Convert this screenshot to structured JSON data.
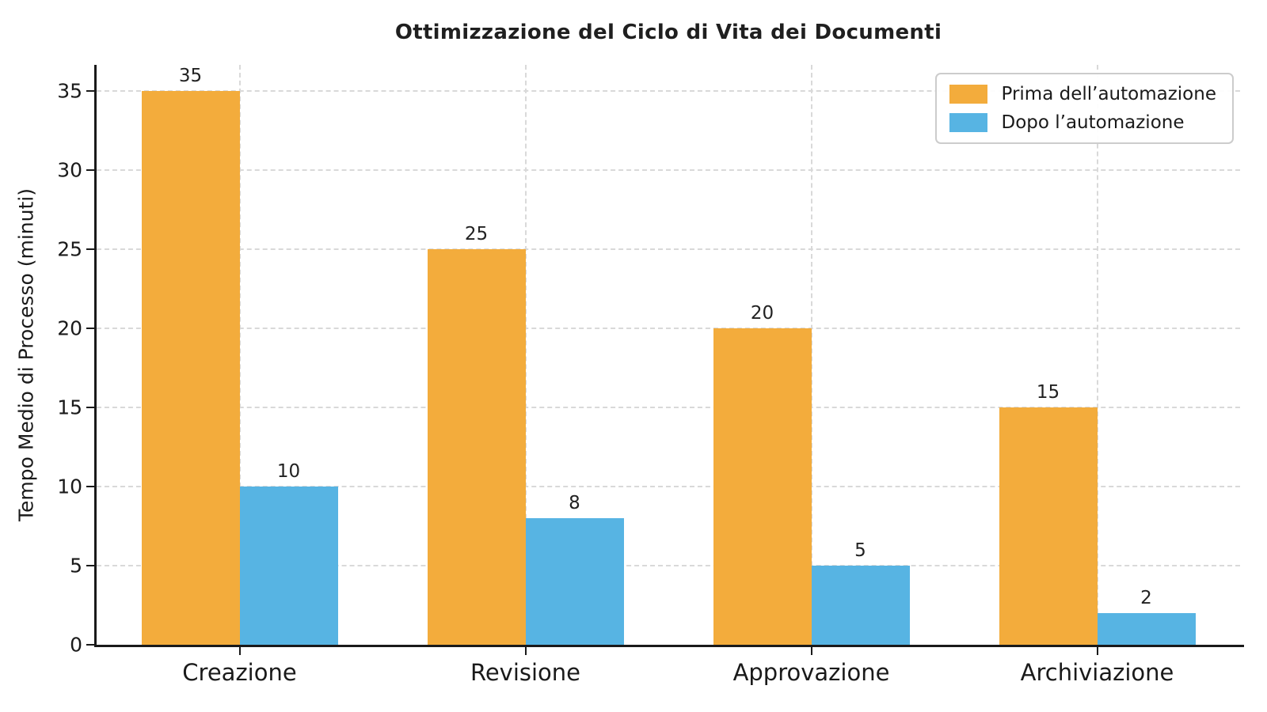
{
  "chart_data": {
    "type": "bar",
    "title": "Ottimizzazione del Ciclo di Vita dei Documenti",
    "xlabel": "",
    "ylabel": "Tempo Medio di Processo (minuti)",
    "categories": [
      "Creazione",
      "Revisione",
      "Approvazione",
      "Archiviazione"
    ],
    "series": [
      {
        "name": "Prima dell’automazione",
        "color": "#F3AC3C",
        "values": [
          35,
          25,
          20,
          15
        ]
      },
      {
        "name": "Dopo l’automazione",
        "color": "#57B4E3",
        "values": [
          10,
          8,
          5,
          2
        ]
      }
    ],
    "yticks": [
      0,
      5,
      10,
      15,
      20,
      25,
      30,
      35
    ],
    "ylim": [
      0,
      36.65
    ],
    "grid": "dashed, horizontal at yticks and vertical at category centers, drawn behind bars",
    "legend_position": "upper right",
    "bar_value_labels": true,
    "colors": {
      "axis": "#1a1a1a",
      "gridline": "#d9d9d9",
      "text": "#222222",
      "background": "#ffffff",
      "legend_border": "#cccccc"
    }
  }
}
